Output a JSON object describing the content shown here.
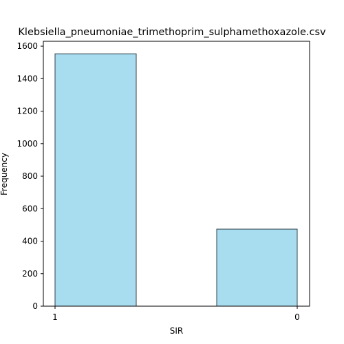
{
  "chart_data": {
    "type": "bar",
    "title": "Klebsiella_pneumoniae_trimethoprim_sulphamethoxazole.csv",
    "xlabel": "SIR",
    "ylabel": "Frequency",
    "categories": [
      "1",
      "0"
    ],
    "values": [
      1553,
      474
    ],
    "ylim": [
      0,
      1630
    ],
    "yticks": [
      0,
      200,
      400,
      600,
      800,
      1000,
      1200,
      1400,
      1600
    ],
    "grid": false,
    "bar_color": "#a8dcef",
    "bar_edge_color": "#2f3f48"
  }
}
